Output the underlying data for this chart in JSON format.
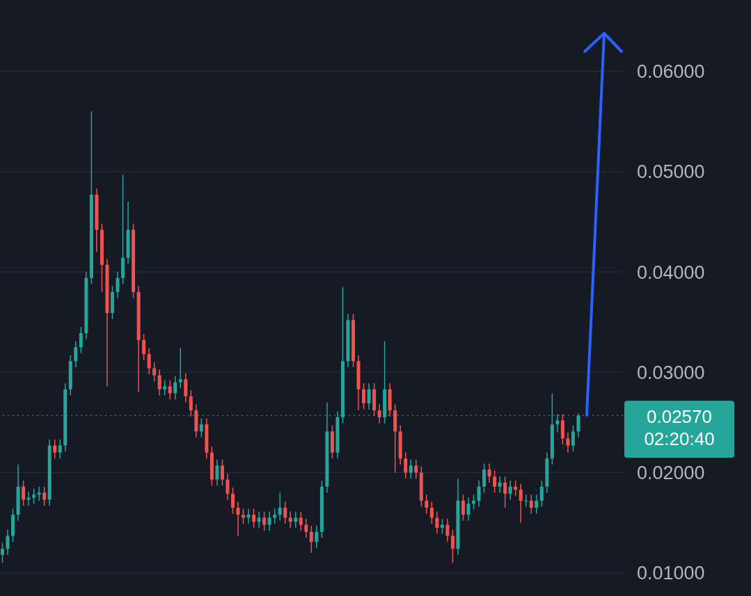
{
  "chart_data": {
    "type": "candlestick",
    "categories": [
      null,
      null,
      null,
      null,
      null,
      null,
      null,
      null,
      null,
      null,
      null,
      null,
      null,
      null,
      null,
      null,
      null,
      null,
      null,
      null,
      null,
      null,
      null,
      null,
      null,
      null,
      null,
      null,
      null,
      null,
      null,
      null,
      null,
      null,
      null,
      null,
      null,
      null,
      null,
      null,
      null,
      null,
      null,
      null,
      null,
      null,
      null,
      null,
      null,
      null,
      null,
      null,
      null,
      null,
      null,
      null,
      null,
      null,
      null,
      null,
      null,
      null,
      null,
      null,
      null,
      null,
      null,
      null,
      null,
      null,
      null,
      null,
      null,
      null,
      null,
      null,
      null,
      null,
      null,
      null,
      null,
      null,
      null,
      null,
      null,
      null,
      null,
      null,
      null,
      null,
      null,
      null,
      null,
      null,
      null,
      null,
      null,
      null,
      null,
      null,
      null,
      null,
      null,
      null,
      null,
      null,
      null,
      null,
      null,
      null,
      null
    ],
    "ohlc": [
      [
        0.0118,
        0.013,
        0.011,
        0.0124
      ],
      [
        0.0124,
        0.0143,
        0.0118,
        0.0137
      ],
      [
        0.0137,
        0.0164,
        0.0131,
        0.0158
      ],
      [
        0.0158,
        0.0208,
        0.0152,
        0.0186
      ],
      [
        0.0186,
        0.0192,
        0.0167,
        0.0173
      ],
      [
        0.0173,
        0.0181,
        0.0167,
        0.0175
      ],
      [
        0.0175,
        0.0184,
        0.0169,
        0.0178
      ],
      [
        0.0178,
        0.0186,
        0.0172,
        0.018
      ],
      [
        0.018,
        0.0186,
        0.0167,
        0.0173
      ],
      [
        0.0173,
        0.0233,
        0.0167,
        0.0227
      ],
      [
        0.0227,
        0.0233,
        0.0214,
        0.022
      ],
      [
        0.022,
        0.0233,
        0.0214,
        0.0227
      ],
      [
        0.0227,
        0.0289,
        0.0221,
        0.0283
      ],
      [
        0.0283,
        0.0317,
        0.0277,
        0.0311
      ],
      [
        0.0311,
        0.0331,
        0.0305,
        0.0325
      ],
      [
        0.0325,
        0.0345,
        0.0319,
        0.0339
      ],
      [
        0.0339,
        0.04,
        0.0333,
        0.0394
      ],
      [
        0.0394,
        0.056,
        0.0388,
        0.0477
      ],
      [
        0.0477,
        0.0483,
        0.042,
        0.0442
      ],
      [
        0.0442,
        0.0448,
        0.038,
        0.0407
      ],
      [
        0.0407,
        0.0413,
        0.0286,
        0.0359
      ],
      [
        0.0359,
        0.0386,
        0.0353,
        0.038
      ],
      [
        0.038,
        0.04,
        0.0374,
        0.0394
      ],
      [
        0.0394,
        0.0497,
        0.0388,
        0.0414
      ],
      [
        0.0414,
        0.047,
        0.0408,
        0.0442
      ],
      [
        0.0442,
        0.0448,
        0.0374,
        0.038
      ],
      [
        0.038,
        0.0386,
        0.028,
        0.0332
      ],
      [
        0.0332,
        0.0338,
        0.0312,
        0.0318
      ],
      [
        0.0318,
        0.0324,
        0.0298,
        0.0304
      ],
      [
        0.0304,
        0.031,
        0.0291,
        0.0297
      ],
      [
        0.0297,
        0.0303,
        0.0277,
        0.0283
      ],
      [
        0.0283,
        0.0292,
        0.0277,
        0.0286
      ],
      [
        0.0286,
        0.0292,
        0.0273,
        0.0279
      ],
      [
        0.0279,
        0.0296,
        0.0273,
        0.029
      ],
      [
        0.029,
        0.0324,
        0.0284,
        0.0293
      ],
      [
        0.0293,
        0.0299,
        0.027,
        0.0276
      ],
      [
        0.0276,
        0.0282,
        0.0256,
        0.0262
      ],
      [
        0.0262,
        0.0268,
        0.0235,
        0.0241
      ],
      [
        0.0241,
        0.0254,
        0.0235,
        0.0248
      ],
      [
        0.0248,
        0.0254,
        0.0214,
        0.022
      ],
      [
        0.022,
        0.0226,
        0.0187,
        0.0193
      ],
      [
        0.0193,
        0.0213,
        0.0187,
        0.0207
      ],
      [
        0.0207,
        0.0213,
        0.0187,
        0.0193
      ],
      [
        0.0193,
        0.0199,
        0.0173,
        0.0179
      ],
      [
        0.0179,
        0.0185,
        0.0159,
        0.0165
      ],
      [
        0.0165,
        0.0171,
        0.0137,
        0.0158
      ],
      [
        0.0158,
        0.0164,
        0.0149,
        0.0155
      ],
      [
        0.0155,
        0.0164,
        0.0149,
        0.0158
      ],
      [
        0.0158,
        0.0164,
        0.0145,
        0.0151
      ],
      [
        0.0151,
        0.0161,
        0.0145,
        0.0155
      ],
      [
        0.0155,
        0.0161,
        0.0142,
        0.0148
      ],
      [
        0.0148,
        0.0161,
        0.0142,
        0.0155
      ],
      [
        0.0155,
        0.0164,
        0.0149,
        0.0158
      ],
      [
        0.0158,
        0.018,
        0.0152,
        0.0165
      ],
      [
        0.0165,
        0.0171,
        0.0149,
        0.0155
      ],
      [
        0.0155,
        0.0161,
        0.0145,
        0.0151
      ],
      [
        0.0151,
        0.0161,
        0.0145,
        0.0155
      ],
      [
        0.0155,
        0.0161,
        0.0142,
        0.0148
      ],
      [
        0.0148,
        0.0154,
        0.0135,
        0.0141
      ],
      [
        0.0141,
        0.0147,
        0.012,
        0.0131
      ],
      [
        0.0131,
        0.0147,
        0.0125,
        0.0141
      ],
      [
        0.0141,
        0.0192,
        0.0135,
        0.0186
      ],
      [
        0.0186,
        0.027,
        0.018,
        0.0241
      ],
      [
        0.0241,
        0.0247,
        0.0214,
        0.022
      ],
      [
        0.022,
        0.0261,
        0.0214,
        0.0255
      ],
      [
        0.0255,
        0.0385,
        0.0249,
        0.0311
      ],
      [
        0.0311,
        0.0358,
        0.0305,
        0.0352
      ],
      [
        0.0352,
        0.0358,
        0.0305,
        0.0311
      ],
      [
        0.0311,
        0.0317,
        0.0262,
        0.0283
      ],
      [
        0.0283,
        0.0289,
        0.0263,
        0.0269
      ],
      [
        0.0269,
        0.0289,
        0.0263,
        0.0283
      ],
      [
        0.0283,
        0.0289,
        0.0256,
        0.0262
      ],
      [
        0.0262,
        0.0268,
        0.0249,
        0.0255
      ],
      [
        0.0255,
        0.0331,
        0.0249,
        0.0283
      ],
      [
        0.0283,
        0.0289,
        0.0256,
        0.0262
      ],
      [
        0.0262,
        0.0268,
        0.02,
        0.0241
      ],
      [
        0.0241,
        0.0247,
        0.0208,
        0.0214
      ],
      [
        0.0214,
        0.022,
        0.0194,
        0.02
      ],
      [
        0.02,
        0.0213,
        0.0194,
        0.0207
      ],
      [
        0.0207,
        0.0213,
        0.0194,
        0.02
      ],
      [
        0.02,
        0.0206,
        0.0166,
        0.0172
      ],
      [
        0.0172,
        0.0178,
        0.0159,
        0.0165
      ],
      [
        0.0165,
        0.0171,
        0.0149,
        0.0155
      ],
      [
        0.0155,
        0.0161,
        0.0139,
        0.0145
      ],
      [
        0.0145,
        0.0154,
        0.0139,
        0.0148
      ],
      [
        0.0148,
        0.0154,
        0.0131,
        0.0137
      ],
      [
        0.0137,
        0.0143,
        0.011,
        0.0124
      ],
      [
        0.0124,
        0.0194,
        0.0118,
        0.0172
      ],
      [
        0.0172,
        0.0178,
        0.0152,
        0.0158
      ],
      [
        0.0158,
        0.0175,
        0.0152,
        0.0169
      ],
      [
        0.0169,
        0.0178,
        0.0163,
        0.0172
      ],
      [
        0.0172,
        0.0192,
        0.0166,
        0.0186
      ],
      [
        0.0186,
        0.0209,
        0.018,
        0.0203
      ],
      [
        0.0203,
        0.0209,
        0.019,
        0.0196
      ],
      [
        0.0196,
        0.0202,
        0.018,
        0.0186
      ],
      [
        0.0186,
        0.0196,
        0.018,
        0.019
      ],
      [
        0.019,
        0.0196,
        0.0165,
        0.0179
      ],
      [
        0.0179,
        0.0192,
        0.0173,
        0.0186
      ],
      [
        0.0186,
        0.0192,
        0.0177,
        0.0183
      ],
      [
        0.0183,
        0.0189,
        0.015,
        0.0172
      ],
      [
        0.0172,
        0.0178,
        0.0166,
        0.0172
      ],
      [
        0.0172,
        0.0178,
        0.0159,
        0.0165
      ],
      [
        0.0165,
        0.0178,
        0.0159,
        0.0172
      ],
      [
        0.0172,
        0.0192,
        0.0166,
        0.0186
      ],
      [
        0.0186,
        0.022,
        0.018,
        0.0214
      ],
      [
        0.0214,
        0.0279,
        0.0208,
        0.0248
      ],
      [
        0.0248,
        0.0258,
        0.024,
        0.0252
      ],
      [
        0.0252,
        0.0258,
        0.0228,
        0.0234
      ],
      [
        0.0234,
        0.024,
        0.022,
        0.0227
      ],
      [
        0.0227,
        0.0247,
        0.0221,
        0.0241
      ],
      [
        0.0241,
        0.0259,
        0.0235,
        0.0257
      ]
    ],
    "ylim": [
      0.0077,
      0.0671
    ],
    "yticks": [
      {
        "value": 0.01,
        "label": "0.01000"
      },
      {
        "value": 0.02,
        "label": "0.02000"
      },
      {
        "value": 0.03,
        "label": "0.03000"
      },
      {
        "value": 0.04,
        "label": "0.04000"
      },
      {
        "value": 0.05,
        "label": "0.05000"
      },
      {
        "value": 0.06,
        "label": "0.06000"
      }
    ],
    "tick_labels": "y",
    "grid": "y",
    "ref_lines": [
      {
        "axis": "y",
        "value": 0.0257,
        "label": "0.02570",
        "color": "#26a69a",
        "line_style": "dotted"
      }
    ],
    "annotations": [
      "02:20:40"
    ]
  }
}
